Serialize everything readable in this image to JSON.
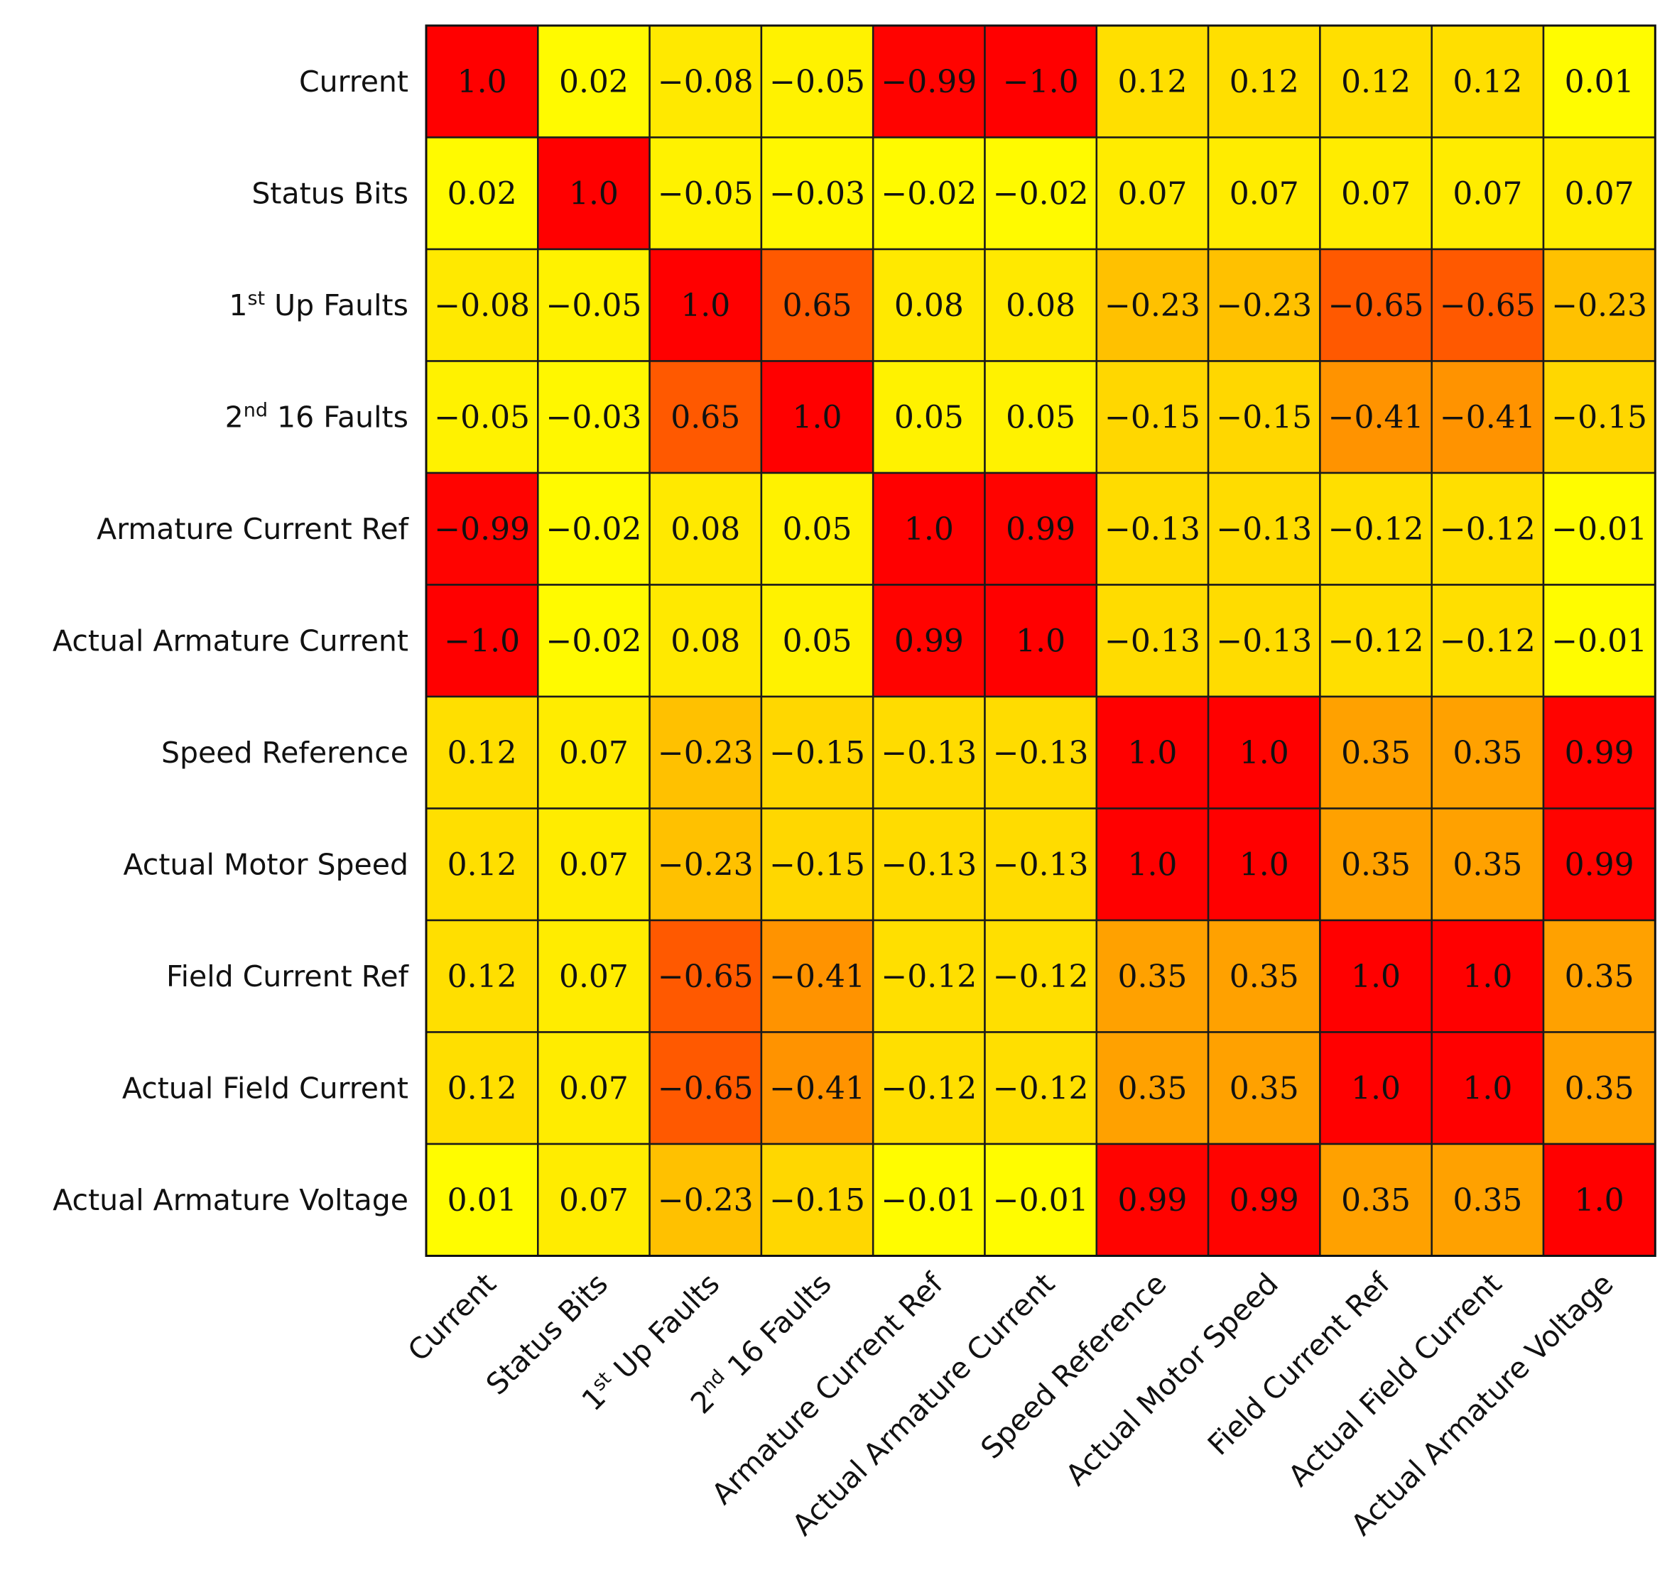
{
  "chart_data": {
    "type": "heatmap",
    "title": "",
    "xlabel": "",
    "ylabel": "",
    "colormap": [
      "#ffff00",
      "#ffa500",
      "#ff5500",
      "#ff0000"
    ],
    "color_range": [
      0,
      1
    ],
    "row_labels": [
      "Current",
      "Status Bits",
      "1st Up Faults",
      "2nd 16 Faults",
      "Armature Current Ref",
      "Actual Armature Current",
      "Speed Reference",
      "Actual Motor Speed",
      "Field Current Ref",
      "Actual Field Current",
      "Actual Armature Voltage"
    ],
    "col_labels": [
      "Current",
      "Status Bits",
      "1st Up Faults",
      "2nd 16 Faults",
      "Armature Current Ref",
      "Actual Armature Current",
      "Speed Reference",
      "Actual Motor Speed",
      "Field Current Ref",
      "Actual Field Current",
      "Actual Armature Voltage"
    ],
    "values": [
      [
        1.0,
        0.02,
        -0.08,
        -0.05,
        -0.99,
        -1.0,
        0.12,
        0.12,
        0.12,
        0.12,
        0.01
      ],
      [
        0.02,
        1.0,
        -0.05,
        -0.03,
        -0.02,
        -0.02,
        0.07,
        0.07,
        0.07,
        0.07,
        0.07
      ],
      [
        -0.08,
        -0.05,
        1.0,
        0.65,
        0.08,
        0.08,
        -0.23,
        -0.23,
        -0.65,
        -0.65,
        -0.23
      ],
      [
        -0.05,
        -0.03,
        0.65,
        1.0,
        0.05,
        0.05,
        -0.15,
        -0.15,
        -0.41,
        -0.41,
        -0.15
      ],
      [
        -0.99,
        -0.02,
        0.08,
        0.05,
        1.0,
        0.99,
        -0.13,
        -0.13,
        -0.12,
        -0.12,
        -0.01
      ],
      [
        -1.0,
        -0.02,
        0.08,
        0.05,
        0.99,
        1.0,
        -0.13,
        -0.13,
        -0.12,
        -0.12,
        -0.01
      ],
      [
        0.12,
        0.07,
        -0.23,
        -0.15,
        -0.13,
        -0.13,
        1.0,
        1.0,
        0.35,
        0.35,
        0.99
      ],
      [
        0.12,
        0.07,
        -0.23,
        -0.15,
        -0.13,
        -0.13,
        1.0,
        1.0,
        0.35,
        0.35,
        0.99
      ],
      [
        0.12,
        0.07,
        -0.65,
        -0.41,
        -0.12,
        -0.12,
        0.35,
        0.35,
        1.0,
        1.0,
        0.35
      ],
      [
        0.12,
        0.07,
        -0.65,
        -0.41,
        -0.12,
        -0.12,
        0.35,
        0.35,
        1.0,
        1.0,
        0.35
      ],
      [
        0.01,
        0.07,
        -0.23,
        -0.15,
        -0.01,
        -0.01,
        0.99,
        0.99,
        0.35,
        0.35,
        1.0
      ]
    ],
    "grid": true,
    "legend": "none"
  }
}
